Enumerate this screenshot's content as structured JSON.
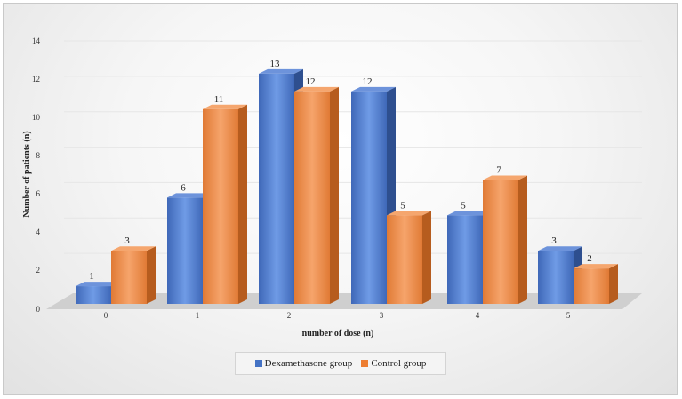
{
  "chart_data": {
    "type": "bar",
    "categories": [
      "0",
      "1",
      "2",
      "3",
      "4",
      "5"
    ],
    "series": [
      {
        "name": "Dexamethasone group",
        "values": [
          1,
          6,
          13,
          12,
          5,
          3
        ],
        "color": "#4472C4"
      },
      {
        "name": "Control group",
        "values": [
          3,
          11,
          12,
          5,
          7,
          2
        ],
        "color": "#ED7D31"
      }
    ],
    "yticks": [
      "0",
      "2",
      "4",
      "6",
      "8",
      "10",
      "12",
      "14"
    ],
    "ylim": [
      0,
      14
    ],
    "xlabel": "number of dose (n)",
    "ylabel": "Number of patients (n)",
    "grid": true,
    "legend_position": "bottom"
  }
}
